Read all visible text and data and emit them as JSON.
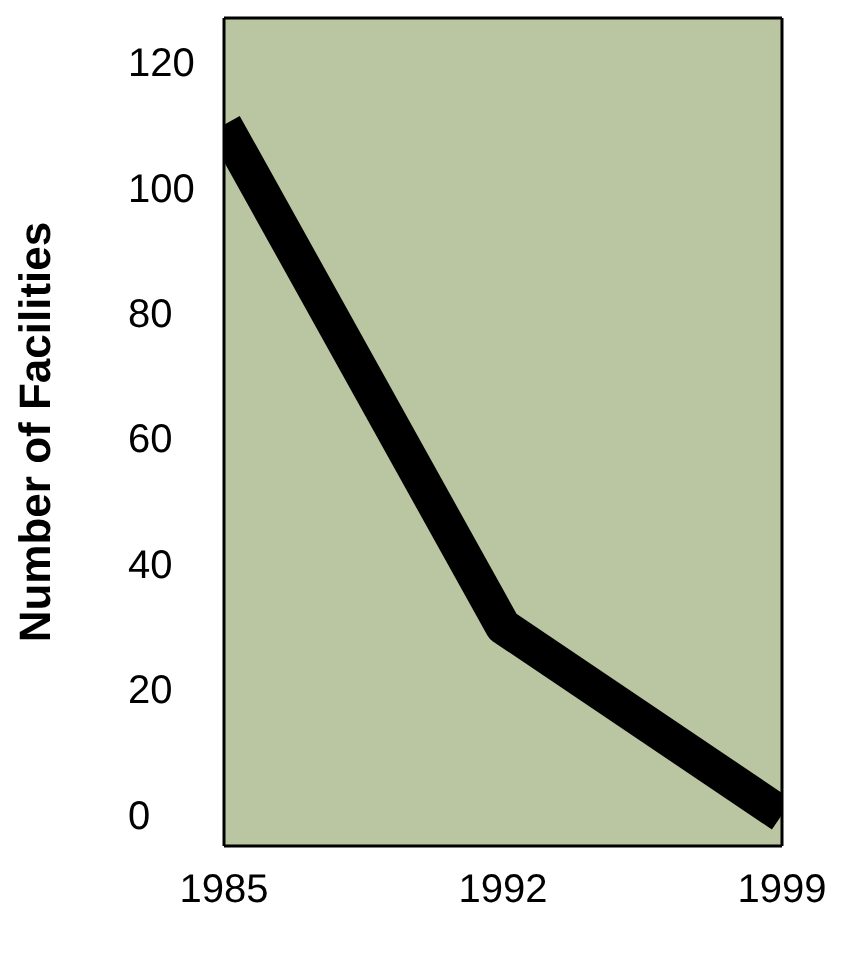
{
  "chart_data": {
    "type": "line",
    "ylabel": "Number of Facilities",
    "x": [
      1985,
      1992,
      1999
    ],
    "series": [
      {
        "color": "#000000",
        "values": [
          110,
          30,
          0
        ]
      }
    ],
    "xlim": [
      1985,
      1999
    ],
    "xticks": [
      1985,
      1992,
      1999
    ],
    "ylim": [
      -5,
      127
    ],
    "yticks": [
      0,
      20,
      40,
      60,
      80,
      100,
      120
    ],
    "grid": false,
    "legend": false,
    "marker": "none",
    "line_style": "solid"
  }
}
